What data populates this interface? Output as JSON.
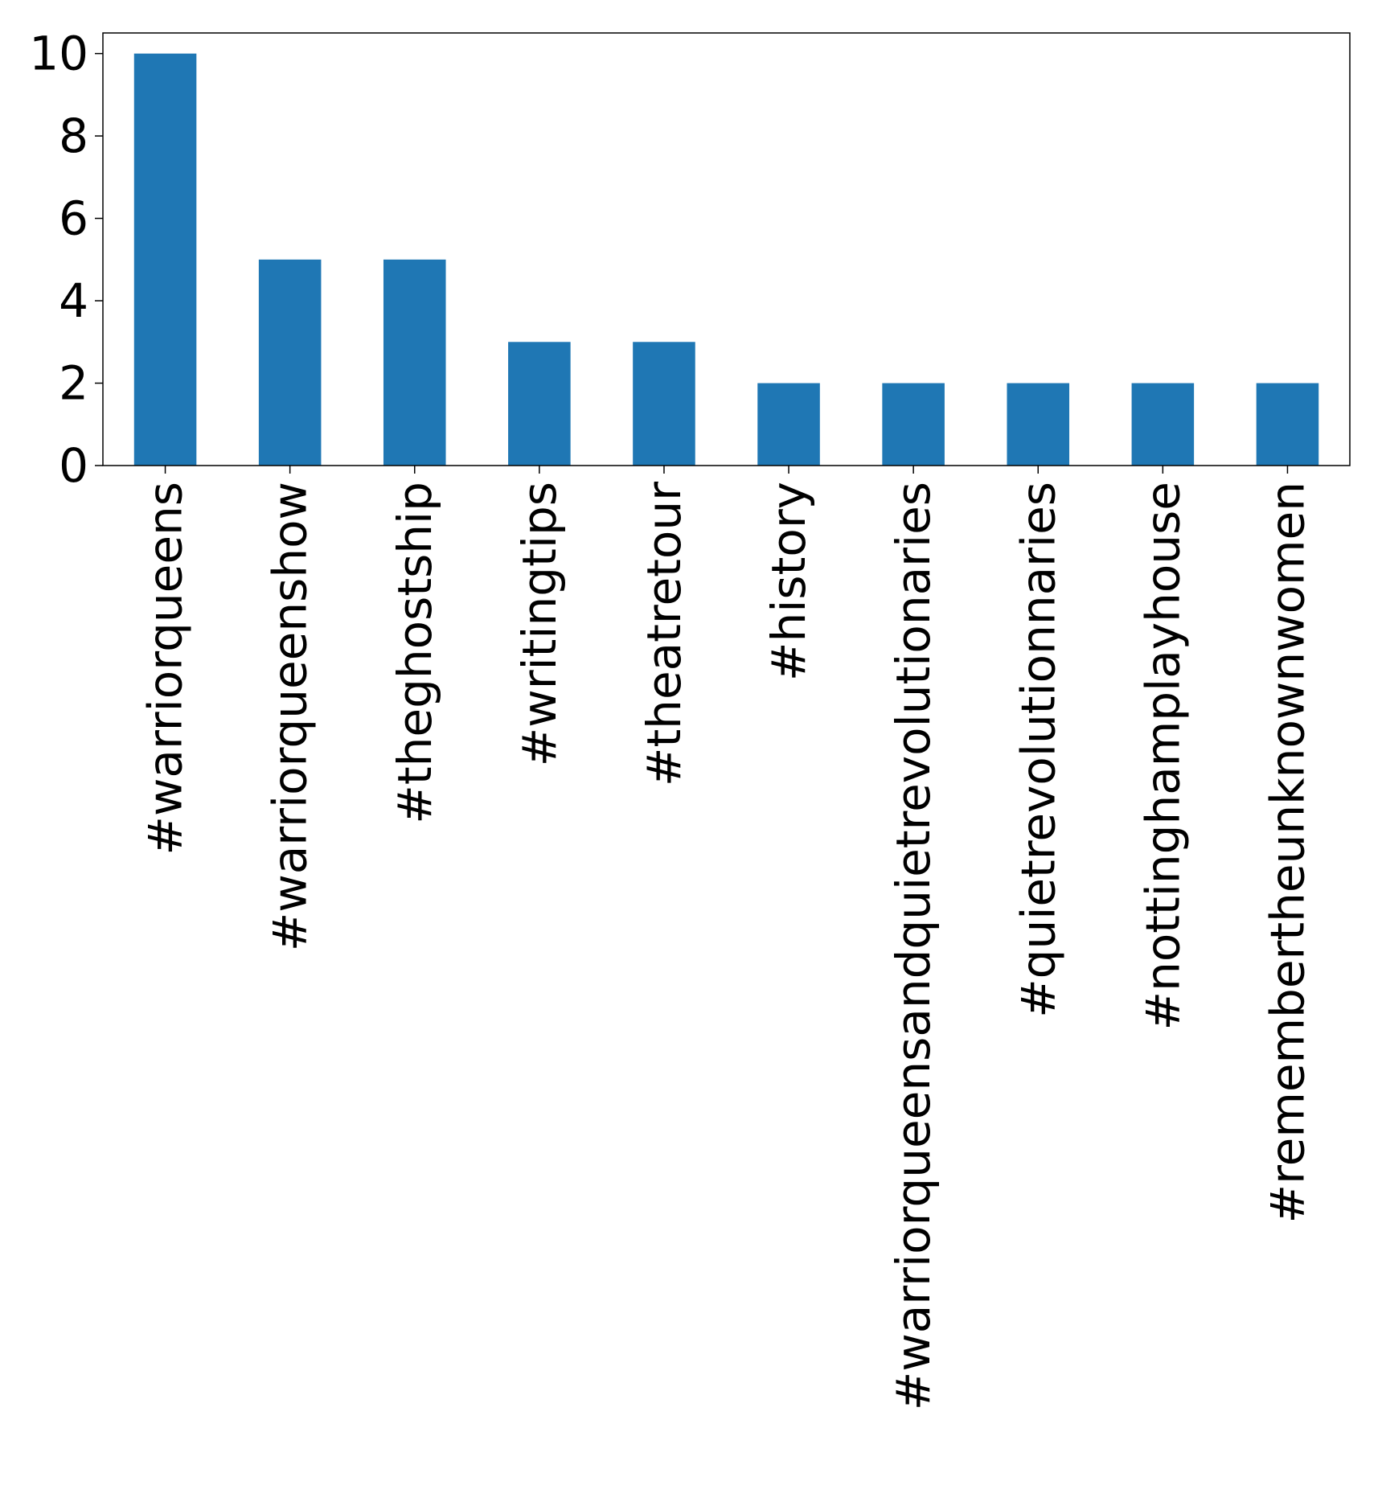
{
  "chart_data": {
    "type": "bar",
    "categories": [
      "#warriorqueens",
      "#warriorqueenshow",
      "#theghostship",
      "#writingtips",
      "#theatretour",
      "#history",
      "#warriorqueensandquietrevolutionaries",
      "#quietrevolutionnaries",
      "#nottinghamplayhouse",
      "#remembertheunknownwomen"
    ],
    "values": [
      10,
      5,
      5,
      3,
      3,
      2,
      2,
      2,
      2,
      2
    ],
    "ylim": [
      0,
      10.5
    ],
    "yticks": [
      0,
      2,
      4,
      6,
      8,
      10
    ],
    "xlabel": "",
    "ylabel": "",
    "title": "",
    "bar_color": "#1f77b4",
    "grid": false,
    "legend": false
  }
}
